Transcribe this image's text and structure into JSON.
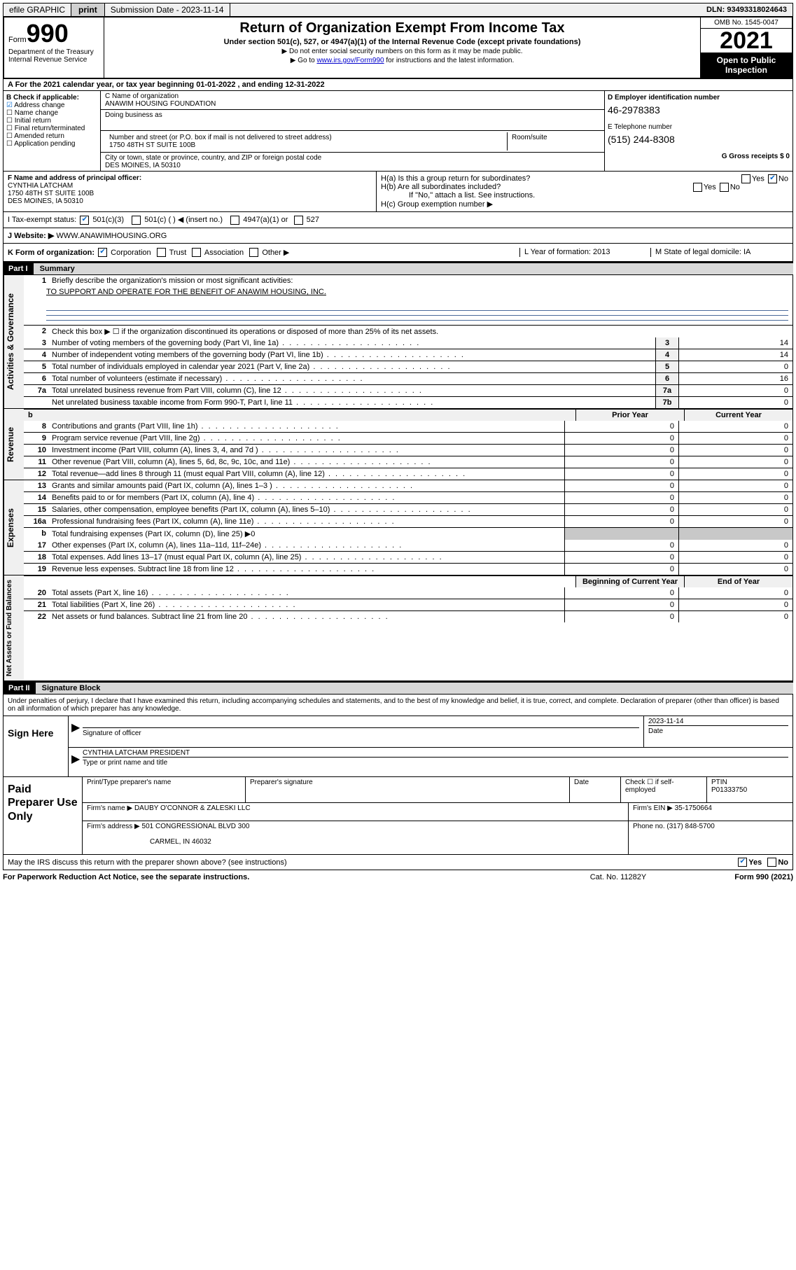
{
  "topbar": {
    "efile": "efile GRAPHIC",
    "print": "print",
    "sub_date_label": "Submission Date - 2023-11-14",
    "dln": "DLN: 93493318024643"
  },
  "header": {
    "form_word": "Form",
    "form_num": "990",
    "title": "Return of Organization Exempt From Income Tax",
    "subtitle": "Under section 501(c), 527, or 4947(a)(1) of the Internal Revenue Code (except private foundations)",
    "note1": "▶ Do not enter social security numbers on this form as it may be made public.",
    "note2_pre": "▶ Go to ",
    "note2_link": "www.irs.gov/Form990",
    "note2_post": " for instructions and the latest information.",
    "dept": "Department of the Treasury",
    "irs": "Internal Revenue Service",
    "omb": "OMB No. 1545-0047",
    "year": "2021",
    "open": "Open to Public Inspection"
  },
  "row_a": {
    "text": "A For the 2021 calendar year, or tax year beginning 01-01-2022   , and ending 12-31-2022"
  },
  "col_b": {
    "header": "B Check if applicable:",
    "items": [
      "Address change",
      "Name change",
      "Initial return",
      "Final return/terminated",
      "Amended return",
      "Application pending"
    ],
    "checked_idx": 0
  },
  "col_c": {
    "name_label": "C Name of organization",
    "name": "ANAWIM HOUSING FOUNDATION",
    "dba_label": "Doing business as",
    "street_label": "Number and street (or P.O. box if mail is not delivered to street address)",
    "street": "1750 48TH ST SUITE 100B",
    "room_label": "Room/suite",
    "city_label": "City or town, state or province, country, and ZIP or foreign postal code",
    "city": "DES MOINES, IA  50310"
  },
  "col_d": {
    "ein_label": "D Employer identification number",
    "ein": "46-2978383",
    "phone_label": "E Telephone number",
    "phone": "(515) 244-8308",
    "gross_label": "G Gross receipts $ 0"
  },
  "fg": {
    "f_label": "F  Name and address of principal officer:",
    "f_name": "CYNTHIA LATCHAM",
    "f_addr1": "1750 48TH ST SUITE 100B",
    "f_addr2": "DES MOINES, IA  50310",
    "ha": "H(a)  Is this a group return for subordinates?",
    "hb": "H(b)  Are all subordinates included?",
    "hb_note": "If \"No,\" attach a list. See instructions.",
    "hc": "H(c)  Group exemption number ▶",
    "yes": "Yes",
    "no": "No"
  },
  "tax_status": {
    "label": "I   Tax-exempt status:",
    "opts": [
      "501(c)(3)",
      "501(c) (   ) ◀ (insert no.)",
      "4947(a)(1) or",
      "527"
    ]
  },
  "website": {
    "label": "J   Website: ▶",
    "value": " WWW.ANAWIMHOUSING.ORG"
  },
  "row_k": {
    "k": "K Form of organization:",
    "opts": [
      "Corporation",
      "Trust",
      "Association",
      "Other ▶"
    ],
    "l": "L Year of formation: 2013",
    "m": "M State of legal domicile: IA"
  },
  "part1": {
    "label": "Part I",
    "title": "Summary",
    "q1": "Briefly describe the organization's mission or most significant activities:",
    "mission": "TO SUPPORT AND OPERATE FOR THE BENEFIT OF ANAWIM HOUSING, INC.",
    "q2": "Check this box ▶ ☐  if the organization discontinued its operations or disposed of more than 25% of its net assets.",
    "lines_gov": [
      {
        "n": "3",
        "d": "Number of voting members of the governing body (Part VI, line 1a)",
        "box": "3",
        "v": "14"
      },
      {
        "n": "4",
        "d": "Number of independent voting members of the governing body (Part VI, line 1b)",
        "box": "4",
        "v": "14"
      },
      {
        "n": "5",
        "d": "Total number of individuals employed in calendar year 2021 (Part V, line 2a)",
        "box": "5",
        "v": "0"
      },
      {
        "n": "6",
        "d": "Total number of volunteers (estimate if necessary)",
        "box": "6",
        "v": "16"
      },
      {
        "n": "7a",
        "d": "Total unrelated business revenue from Part VIII, column (C), line 12",
        "box": "7a",
        "v": "0"
      },
      {
        "n": "",
        "d": "Net unrelated business taxable income from Form 990-T, Part I, line 11",
        "box": "7b",
        "v": "0"
      }
    ],
    "prior": "Prior Year",
    "current": "Current Year",
    "lines_rev": [
      {
        "n": "8",
        "d": "Contributions and grants (Part VIII, line 1h)",
        "p": "0",
        "c": "0"
      },
      {
        "n": "9",
        "d": "Program service revenue (Part VIII, line 2g)",
        "p": "0",
        "c": "0"
      },
      {
        "n": "10",
        "d": "Investment income (Part VIII, column (A), lines 3, 4, and 7d )",
        "p": "0",
        "c": "0"
      },
      {
        "n": "11",
        "d": "Other revenue (Part VIII, column (A), lines 5, 6d, 8c, 9c, 10c, and 11e)",
        "p": "0",
        "c": "0"
      },
      {
        "n": "12",
        "d": "Total revenue—add lines 8 through 11 (must equal Part VIII, column (A), line 12)",
        "p": "0",
        "c": "0"
      }
    ],
    "lines_exp": [
      {
        "n": "13",
        "d": "Grants and similar amounts paid (Part IX, column (A), lines 1–3 )",
        "p": "0",
        "c": "0"
      },
      {
        "n": "14",
        "d": "Benefits paid to or for members (Part IX, column (A), line 4)",
        "p": "0",
        "c": "0"
      },
      {
        "n": "15",
        "d": "Salaries, other compensation, employee benefits (Part IX, column (A), lines 5–10)",
        "p": "0",
        "c": "0"
      },
      {
        "n": "16a",
        "d": "Professional fundraising fees (Part IX, column (A), line 11e)",
        "p": "0",
        "c": "0"
      }
    ],
    "line_b": {
      "n": "b",
      "d": "Total fundraising expenses (Part IX, column (D), line 25) ▶0"
    },
    "lines_exp2": [
      {
        "n": "17",
        "d": "Other expenses (Part IX, column (A), lines 11a–11d, 11f–24e)",
        "p": "0",
        "c": "0"
      },
      {
        "n": "18",
        "d": "Total expenses. Add lines 13–17 (must equal Part IX, column (A), line 25)",
        "p": "0",
        "c": "0"
      },
      {
        "n": "19",
        "d": "Revenue less expenses. Subtract line 18 from line 12",
        "p": "0",
        "c": "0"
      }
    ],
    "begin": "Beginning of Current Year",
    "end": "End of Year",
    "lines_net": [
      {
        "n": "20",
        "d": "Total assets (Part X, line 16)",
        "p": "0",
        "c": "0"
      },
      {
        "n": "21",
        "d": "Total liabilities (Part X, line 26)",
        "p": "0",
        "c": "0"
      },
      {
        "n": "22",
        "d": "Net assets or fund balances. Subtract line 21 from line 20",
        "p": "0",
        "c": "0"
      }
    ]
  },
  "vtabs": {
    "gov": "Activities & Governance",
    "rev": "Revenue",
    "exp": "Expenses",
    "net": "Net Assets or Fund Balances"
  },
  "part2": {
    "label": "Part II",
    "title": "Signature Block",
    "penalties": "Under penalties of perjury, I declare that I have examined this return, including accompanying schedules and statements, and to the best of my knowledge and belief, it is true, correct, and complete. Declaration of preparer (other than officer) is based on all information of which preparer has any knowledge."
  },
  "sign": {
    "label": "Sign Here",
    "sig_of": "Signature of officer",
    "date_label": "Date",
    "date": "2023-11-14",
    "name": "CYNTHIA LATCHAM  PRESIDENT",
    "name_label": "Type or print name and title"
  },
  "prep": {
    "label": "Paid Preparer Use Only",
    "pt_name": "Print/Type preparer's name",
    "pt_sig": "Preparer's signature",
    "pt_date": "Date",
    "pt_check": "Check ☐ if self-employed",
    "ptin_label": "PTIN",
    "ptin": "P01333750",
    "firm_name_label": "Firm's name     ▶",
    "firm_name": "DAUBY O'CONNOR & ZALESKI LLC",
    "firm_ein_label": "Firm's EIN ▶",
    "firm_ein": "35-1750664",
    "firm_addr_label": "Firm's address ▶",
    "firm_addr1": "501 CONGRESSIONAL BLVD 300",
    "firm_addr2": "CARMEL, IN  46032",
    "phone_label": "Phone no.",
    "phone": "(317) 848-5700"
  },
  "footer": {
    "discuss": "May the IRS discuss this return with the preparer shown above? (see instructions)",
    "yes": "Yes",
    "no": "No",
    "paperwork": "For Paperwork Reduction Act Notice, see the separate instructions.",
    "cat": "Cat. No. 11282Y",
    "form": "Form 990 (2021)"
  }
}
